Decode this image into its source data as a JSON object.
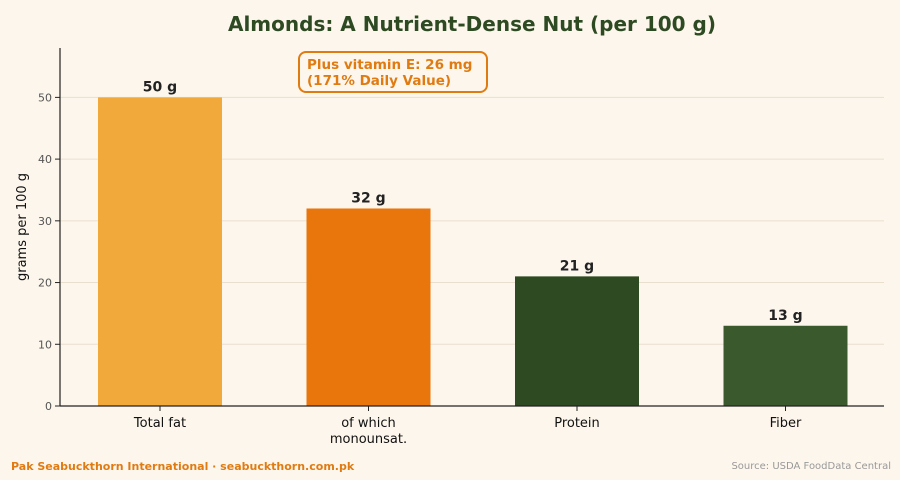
{
  "chart_data": {
    "type": "bar",
    "title": "Almonds: A Nutrient-Dense Nut (per 100 g)",
    "ylabel": "grams per 100 g",
    "xlabel": "",
    "categories": [
      "Total fat",
      "of which\nmonounsat.",
      "Protein",
      "Fiber"
    ],
    "values": [
      50,
      32,
      21,
      13
    ],
    "value_labels": [
      "50 g",
      "32 g",
      "21 g",
      "13 g"
    ],
    "bar_colors": [
      "#f2a93b",
      "#e8760c",
      "#2d4a22",
      "#3a5a2e"
    ],
    "ylim": [
      0,
      58
    ],
    "yticks": [
      0,
      10,
      20,
      30,
      40,
      50
    ],
    "grid": "horizontal",
    "annotation": {
      "line1": "Plus vitamin E: 26 mg",
      "line2": "(171% Daily Value)"
    }
  },
  "footer": {
    "brand": "Pak Seabuckthorn International  ·  seabuckthorn.com.pk",
    "source": "Source: USDA FoodData Central"
  },
  "colors": {
    "background": "#fdf6ec",
    "title": "#2d4a22",
    "accent": "#e07b12",
    "grid": "#eadfcf",
    "axis": "#222222"
  }
}
